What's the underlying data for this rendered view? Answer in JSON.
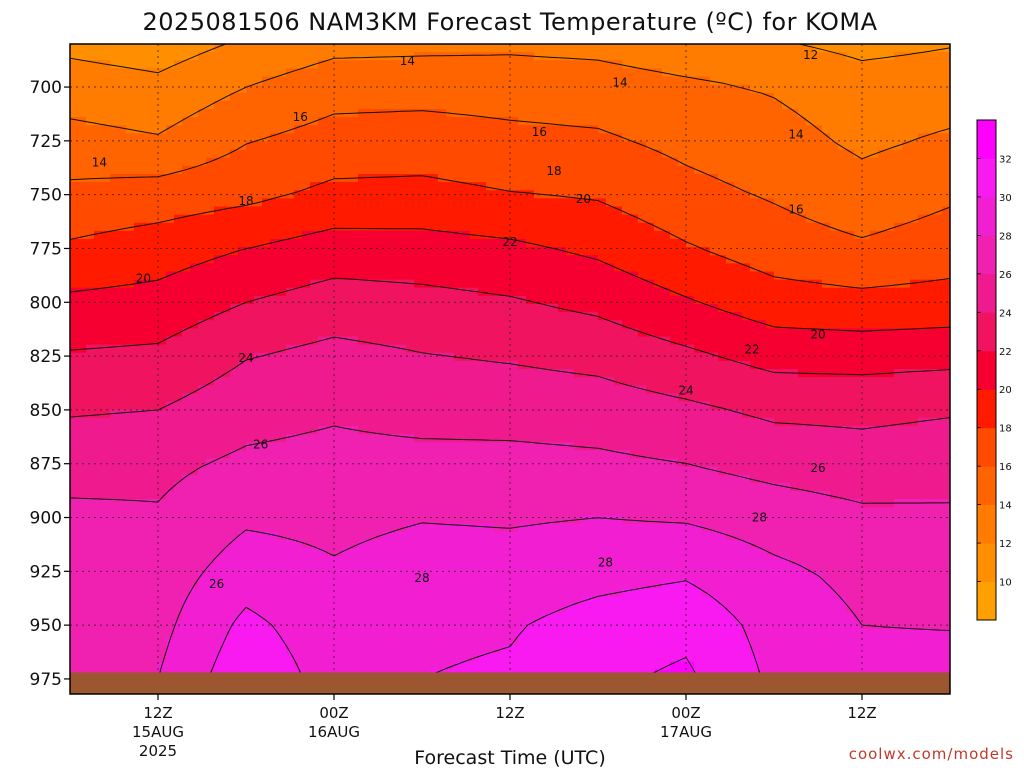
{
  "chart_data": {
    "type": "heatmap",
    "subtype": "filled-contour time-height cross section",
    "title": "2025081506 NAM3KM Forecast Temperature (ºC) for KOMA",
    "xlabel": "Forecast Time (UTC)",
    "ylabel": "",
    "y_axis": {
      "units": "hPa",
      "inverted": true,
      "range": [
        680,
        982
      ],
      "ticks": [
        700,
        725,
        750,
        775,
        800,
        825,
        850,
        875,
        900,
        925,
        950,
        975
      ]
    },
    "x_axis": {
      "range_hours": [
        0,
        60
      ],
      "ticks": [
        {
          "hour": 6,
          "line1": "12Z",
          "line2": "15AUG",
          "line3": "2025"
        },
        {
          "hour": 18,
          "line1": "00Z",
          "line2": "16AUG",
          "line3": ""
        },
        {
          "hour": 30,
          "line1": "12Z",
          "line2": "",
          "line3": ""
        },
        {
          "hour": 42,
          "line1": "00Z",
          "line2": "17AUG",
          "line3": ""
        },
        {
          "hour": 54,
          "line1": "12Z",
          "line2": "",
          "line3": ""
        }
      ]
    },
    "grid": true,
    "ground_pressure_hpa": 972,
    "ground_color": "#9c5630",
    "contour_interval_c": 2,
    "colorbar": {
      "placement": "right",
      "ticks": [
        10,
        12,
        14,
        16,
        18,
        20,
        22,
        24,
        26,
        28,
        30,
        32
      ],
      "colors": [
        "#ffa000",
        "#ff8f00",
        "#ff7c00",
        "#ff6400",
        "#ff4a00",
        "#ff1a00",
        "#f50030",
        "#f01460",
        "#ee1a8e",
        "#f020b0",
        "#f21ed2",
        "#f81af0",
        "#ff00ff"
      ]
    },
    "temperature_profiles": {
      "pressure_levels": [
        680,
        700,
        725,
        750,
        775,
        800,
        825,
        850,
        875,
        900,
        925,
        950,
        975
      ],
      "by_hour": [
        {
          "hour": 0,
          "values": [
            11.5,
            13.0,
            14.7,
            16.5,
            18.3,
            20.4,
            22.2,
            23.8,
            25.3,
            26.4,
            27.0,
            27.4,
            27.2
          ]
        },
        {
          "hour": 6,
          "values": [
            11.0,
            12.5,
            14.2,
            16.9,
            19.0,
            20.7,
            22.4,
            24.0,
            25.5,
            26.2,
            26.9,
            27.4,
            28.0
          ]
        },
        {
          "hour": 12,
          "values": [
            12.3,
            14.0,
            15.9,
            17.5,
            20.0,
            22.0,
            23.9,
            25.2,
            26.4,
            27.7,
            29.0,
            30.5,
            31.5
          ]
        },
        {
          "hour": 18,
          "values": [
            13.4,
            15.2,
            16.8,
            18.5,
            20.9,
            22.9,
            24.6,
            25.7,
            26.7,
            27.5,
            28.2,
            28.8,
            29.2
          ]
        },
        {
          "hour": 24,
          "values": [
            13.5,
            15.3,
            16.9,
            18.6,
            20.8,
            22.6,
            24.1,
            25.2,
            26.7,
            27.9,
            28.9,
            29.6,
            30.0
          ]
        },
        {
          "hour": 30,
          "values": [
            13.6,
            15.2,
            16.5,
            18.1,
            20.4,
            22.2,
            23.8,
            25.2,
            26.6,
            27.8,
            28.8,
            29.8,
            30.3
          ]
        },
        {
          "hour": 36,
          "values": [
            13.4,
            15.0,
            16.3,
            17.8,
            19.6,
            21.5,
            23.4,
            25.0,
            26.4,
            28.0,
            29.3,
            30.8,
            31.6
          ]
        },
        {
          "hour": 42,
          "values": [
            12.7,
            14.4,
            15.5,
            16.6,
            18.2,
            20.2,
            22.4,
            24.4,
            26.0,
            27.8,
            29.7,
            31.4,
            32.4
          ]
        },
        {
          "hour": 48,
          "values": [
            12.2,
            13.8,
            14.8,
            15.8,
            17.0,
            18.9,
            21.3,
            23.6,
            25.3,
            27.1,
            28.4,
            29.2,
            29.6
          ]
        },
        {
          "hour": 54,
          "values": [
            11.5,
            12.8,
            13.6,
            14.8,
            16.3,
            18.6,
            21.2,
            23.5,
            24.9,
            26.4,
            27.5,
            28.0,
            28.7
          ]
        },
        {
          "hour": 60,
          "values": [
            11.9,
            13.0,
            14.3,
            15.7,
            17.0,
            18.8,
            21.4,
            23.8,
            25.2,
            26.3,
            27.2,
            27.9,
            28.9
          ]
        }
      ]
    },
    "contour_labels": [
      {
        "value": "14",
        "hour": 23.0,
        "p": 688
      },
      {
        "value": "12",
        "hour": 50.5,
        "p": 685
      },
      {
        "value": "14",
        "hour": 37.5,
        "p": 698
      },
      {
        "value": "16",
        "hour": 15.7,
        "p": 714
      },
      {
        "value": "16",
        "hour": 32.0,
        "p": 721
      },
      {
        "value": "14",
        "hour": 49.5,
        "p": 722
      },
      {
        "value": "14",
        "hour": 2.0,
        "p": 735
      },
      {
        "value": "18",
        "hour": 33.0,
        "p": 739
      },
      {
        "value": "18",
        "hour": 12.0,
        "p": 753
      },
      {
        "value": "20",
        "hour": 35.0,
        "p": 752
      },
      {
        "value": "16",
        "hour": 49.5,
        "p": 757
      },
      {
        "value": "22",
        "hour": 30.0,
        "p": 772
      },
      {
        "value": "20",
        "hour": 5.0,
        "p": 789
      },
      {
        "value": "20",
        "hour": 51.0,
        "p": 815
      },
      {
        "value": "22",
        "hour": 46.5,
        "p": 822
      },
      {
        "value": "24",
        "hour": 12.0,
        "p": 826
      },
      {
        "value": "24",
        "hour": 42.0,
        "p": 841
      },
      {
        "value": "26",
        "hour": 13.0,
        "p": 866
      },
      {
        "value": "26",
        "hour": 51.0,
        "p": 877
      },
      {
        "value": "28",
        "hour": 47.0,
        "p": 900
      },
      {
        "value": "28",
        "hour": 36.5,
        "p": 921
      },
      {
        "value": "28",
        "hour": 24.0,
        "p": 928
      },
      {
        "value": "26",
        "hour": 10.0,
        "p": 931
      }
    ]
  },
  "credit": "coolwx.com/models"
}
